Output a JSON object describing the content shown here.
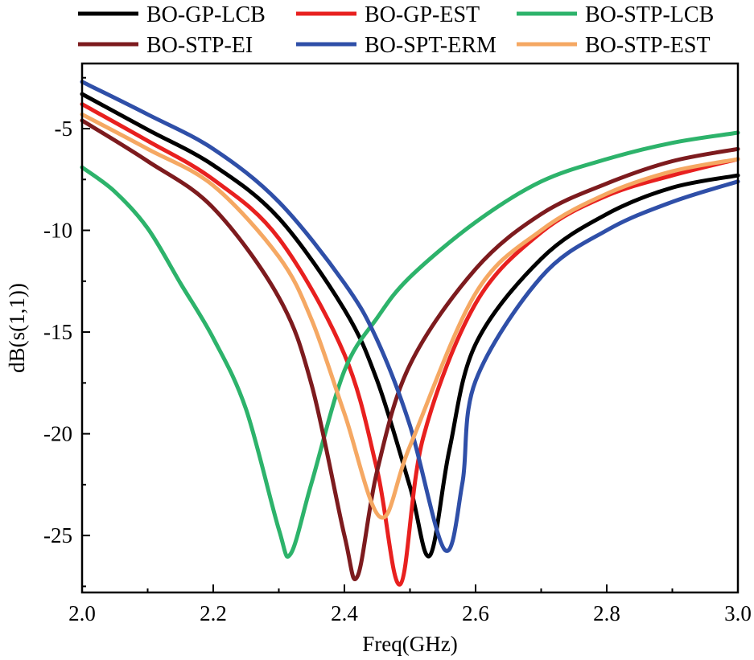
{
  "chart_data": {
    "type": "line",
    "title": "",
    "xlabel": "Freq(GHz)",
    "ylabel": "dB(s(1,1))",
    "xlim": [
      2.0,
      3.0
    ],
    "ylim": [
      -27.8,
      -1.8
    ],
    "x_ticks": [
      2.0,
      2.2,
      2.4,
      2.6,
      2.8,
      3.0
    ],
    "x_tick_labels": [
      "2.0",
      "2.2",
      "2.4",
      "2.6",
      "2.8",
      "3.0"
    ],
    "y_ticks": [
      -5,
      -10,
      -15,
      -20,
      -25
    ],
    "y_tick_labels": [
      "-5",
      "-10",
      "-15",
      "-20",
      "-25"
    ],
    "grid": false,
    "legend_position": "top",
    "series": [
      {
        "name": "BO-GP-LCB",
        "color": "#000000",
        "fmin": 2.528,
        "dmin": -26.0,
        "pts": [
          [
            2.0,
            -3.3
          ],
          [
            2.1,
            -5.05
          ],
          [
            2.2,
            -6.8
          ],
          [
            2.3,
            -9.4
          ],
          [
            2.4,
            -13.9
          ],
          [
            2.45,
            -17.4
          ],
          [
            2.5,
            -22.6
          ],
          [
            2.53,
            -26.0
          ],
          [
            2.56,
            -20.8
          ],
          [
            2.6,
            -15.6
          ],
          [
            2.7,
            -11.4
          ],
          [
            2.8,
            -9.2
          ],
          [
            2.9,
            -7.9
          ],
          [
            3.0,
            -7.3
          ]
        ]
      },
      {
        "name": "BO-GP-EST",
        "color": "#e8201f",
        "fmin": 2.485,
        "dmin": -27.4,
        "pts": [
          [
            2.0,
            -3.8
          ],
          [
            2.1,
            -5.6
          ],
          [
            2.2,
            -7.5
          ],
          [
            2.3,
            -10.4
          ],
          [
            2.4,
            -16.1
          ],
          [
            2.45,
            -21.8
          ],
          [
            2.485,
            -27.4
          ],
          [
            2.52,
            -20.2
          ],
          [
            2.6,
            -13.6
          ],
          [
            2.7,
            -10.1
          ],
          [
            2.8,
            -8.3
          ],
          [
            2.9,
            -7.3
          ],
          [
            3.0,
            -6.5
          ]
        ]
      },
      {
        "name": "BO-STP-LCB",
        "color": "#2db36b",
        "fmin": 2.318,
        "dmin": -25.9,
        "pts": [
          [
            2.0,
            -6.9
          ],
          [
            2.05,
            -8.1
          ],
          [
            2.1,
            -9.9
          ],
          [
            2.15,
            -12.6
          ],
          [
            2.2,
            -15.3
          ],
          [
            2.25,
            -18.8
          ],
          [
            2.3,
            -24.7
          ],
          [
            2.318,
            -25.9
          ],
          [
            2.35,
            -22.4
          ],
          [
            2.4,
            -16.9
          ],
          [
            2.45,
            -14.3
          ],
          [
            2.5,
            -12.3
          ],
          [
            2.6,
            -9.6
          ],
          [
            2.7,
            -7.6
          ],
          [
            2.8,
            -6.5
          ],
          [
            2.9,
            -5.7
          ],
          [
            3.0,
            -5.2
          ]
        ]
      },
      {
        "name": "BO-STP-EI",
        "color": "#7d1b1e",
        "fmin": 2.42,
        "dmin": -27.0,
        "pts": [
          [
            2.0,
            -4.6
          ],
          [
            2.1,
            -6.6
          ],
          [
            2.2,
            -8.9
          ],
          [
            2.3,
            -13.3
          ],
          [
            2.35,
            -17.6
          ],
          [
            2.4,
            -25.0
          ],
          [
            2.42,
            -27.0
          ],
          [
            2.45,
            -21.8
          ],
          [
            2.5,
            -16.6
          ],
          [
            2.6,
            -11.9
          ],
          [
            2.7,
            -9.2
          ],
          [
            2.8,
            -7.7
          ],
          [
            2.9,
            -6.6
          ],
          [
            3.0,
            -6.0
          ]
        ]
      },
      {
        "name": "BO-SPT-ERM",
        "color": "#2f4fa8",
        "fmin": 2.553,
        "dmin": -25.7,
        "pts": [
          [
            2.0,
            -2.7
          ],
          [
            2.1,
            -4.3
          ],
          [
            2.2,
            -6.0
          ],
          [
            2.3,
            -8.6
          ],
          [
            2.4,
            -12.6
          ],
          [
            2.45,
            -15.4
          ],
          [
            2.5,
            -19.6
          ],
          [
            2.553,
            -25.7
          ],
          [
            2.58,
            -22.4
          ],
          [
            2.6,
            -17.4
          ],
          [
            2.7,
            -12.3
          ],
          [
            2.8,
            -10.0
          ],
          [
            2.9,
            -8.6
          ],
          [
            3.0,
            -7.6
          ]
        ]
      },
      {
        "name": "BO-STP-EST",
        "color": "#f5a863",
        "fmin": 2.455,
        "dmin": -24.1,
        "pts": [
          [
            2.0,
            -4.3
          ],
          [
            2.1,
            -6.0
          ],
          [
            2.2,
            -7.8
          ],
          [
            2.3,
            -11.3
          ],
          [
            2.35,
            -14.4
          ],
          [
            2.4,
            -19.0
          ],
          [
            2.455,
            -24.1
          ],
          [
            2.5,
            -20.6
          ],
          [
            2.6,
            -13.1
          ],
          [
            2.7,
            -10.0
          ],
          [
            2.8,
            -8.2
          ],
          [
            2.9,
            -7.1
          ],
          [
            3.0,
            -6.5
          ]
        ]
      }
    ]
  }
}
